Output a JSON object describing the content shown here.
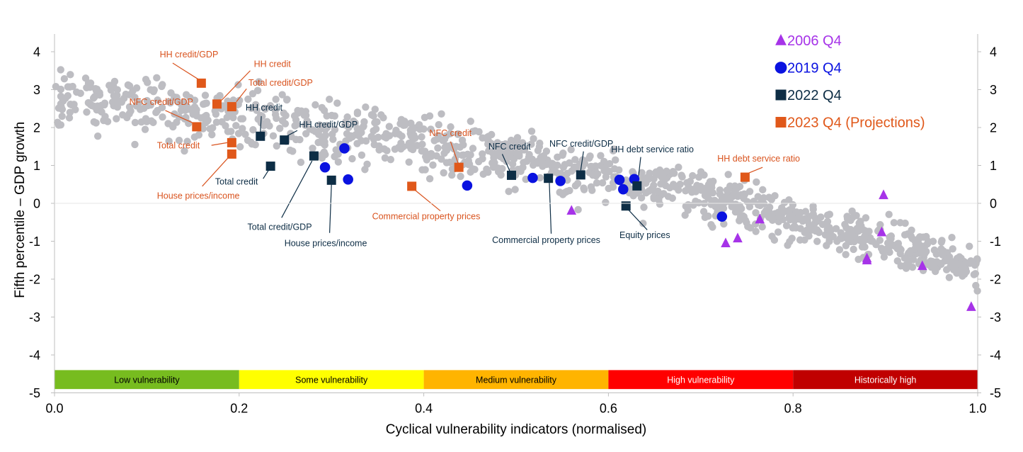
{
  "chart_data": {
    "type": "scatter",
    "title": "",
    "xlabel": "Cyclical vulnerability indicators (normalised)",
    "ylabel": "Fifth percentile – GDP growth",
    "xlim": [
      0,
      1
    ],
    "ylim": [
      -5,
      4.5
    ],
    "x_ticks": [
      "0.0",
      "0.2",
      "0.4",
      "0.6",
      "0.8",
      "1.0"
    ],
    "y_ticks": [
      "-5",
      "-4",
      "-3",
      "-2",
      "-1",
      "0",
      "1",
      "2",
      "3",
      "4"
    ],
    "grid": false,
    "legend_position": "top-right",
    "colors": {
      "background_points": "#bdbdc2",
      "s2006": "#a633e8",
      "s2019": "#0a12e0",
      "s2022": "#0d2d45",
      "s2023": "#e0581a",
      "annot_orange": "#d9531e",
      "annot_navy": "#0d2d45"
    },
    "bands": [
      {
        "label": "Low vulnerability",
        "from": 0.0,
        "to": 0.2,
        "color": "#77bc1f",
        "text_color": "#000000"
      },
      {
        "label": "Some vulnerability",
        "from": 0.2,
        "to": 0.4,
        "color": "#ffff00",
        "text_color": "#000000"
      },
      {
        "label": "Medium vulnerability",
        "from": 0.4,
        "to": 0.6,
        "color": "#ffb400",
        "text_color": "#000000"
      },
      {
        "label": "High vulnerability",
        "from": 0.6,
        "to": 0.8,
        "color": "#ff0000",
        "text_color": "#ffffff"
      },
      {
        "label": "Historically high",
        "from": 0.8,
        "to": 1.0,
        "color": "#c00000",
        "text_color": "#ffffff"
      }
    ],
    "band_y_range": [
      -4.4,
      -4.9
    ],
    "series": [
      {
        "name": "2006 Q4",
        "marker": "triangle",
        "color": "#a633e8",
        "points": [
          [
            0.56,
            -0.19
          ],
          [
            0.727,
            -1.05
          ],
          [
            0.74,
            -0.92
          ],
          [
            0.764,
            -0.42
          ],
          [
            0.88,
            -1.45
          ],
          [
            0.88,
            -1.5
          ],
          [
            0.896,
            -0.76
          ],
          [
            0.898,
            0.22
          ],
          [
            0.94,
            -1.65
          ],
          [
            0.993,
            -2.73
          ]
        ]
      },
      {
        "name": "2019 Q4",
        "marker": "circle",
        "color": "#0a12e0",
        "points": [
          [
            0.293,
            0.95
          ],
          [
            0.314,
            1.45
          ],
          [
            0.318,
            0.63
          ],
          [
            0.447,
            0.47
          ],
          [
            0.518,
            0.67
          ],
          [
            0.548,
            0.59
          ],
          [
            0.612,
            0.62
          ],
          [
            0.616,
            0.37
          ],
          [
            0.628,
            0.64
          ],
          [
            0.723,
            -0.35
          ]
        ]
      },
      {
        "name": "2022 Q4",
        "marker": "square",
        "color": "#0d2d45",
        "points": [
          [
            0.223,
            1.77
          ],
          [
            0.234,
            0.98
          ],
          [
            0.249,
            1.67
          ],
          [
            0.281,
            1.25
          ],
          [
            0.3,
            0.61
          ],
          [
            0.495,
            0.74
          ],
          [
            0.535,
            0.66
          ],
          [
            0.57,
            0.75
          ],
          [
            0.619,
            -0.07
          ],
          [
            0.631,
            0.46
          ]
        ]
      },
      {
        "name": "2023 Q4 (Projections)",
        "marker": "square",
        "color": "#e0581a",
        "points": [
          [
            0.154,
            2.02
          ],
          [
            0.159,
            3.17
          ],
          [
            0.176,
            2.62
          ],
          [
            0.192,
            1.6
          ],
          [
            0.192,
            1.3
          ],
          [
            0.192,
            2.55
          ],
          [
            0.387,
            0.45
          ],
          [
            0.438,
            0.95
          ],
          [
            0.748,
            0.69
          ]
        ]
      }
    ],
    "annotations": [
      {
        "text": "HH credit/GDP",
        "color": "#d9531e",
        "tx": 0.114,
        "ty": 3.85,
        "lx1": 0.128,
        "ly1": 3.7,
        "lx2": 0.156,
        "ly2": 3.27
      },
      {
        "text": "HH credit",
        "color": "#d9531e",
        "tx": 0.216,
        "ty": 3.6,
        "lx1": 0.212,
        "ly1": 3.5,
        "lx2": 0.181,
        "ly2": 2.72
      },
      {
        "text": "Total credit/GDP",
        "color": "#d9531e",
        "tx": 0.21,
        "ty": 3.1,
        "lx1": 0.208,
        "ly1": 3.02,
        "lx2": 0.197,
        "ly2": 2.68
      },
      {
        "text": "NFC credit/GDP",
        "color": "#d9531e",
        "tx": 0.081,
        "ty": 2.6,
        "lx1": 0.12,
        "ly1": 2.45,
        "lx2": 0.15,
        "ly2": 2.12
      },
      {
        "text": "Total credit",
        "color": "#d9531e",
        "tx": 0.111,
        "ty": 1.45,
        "lx1": 0.17,
        "ly1": 1.53,
        "lx2": 0.187,
        "ly2": 1.6
      },
      {
        "text": "House prices/income",
        "color": "#d9531e",
        "tx": 0.111,
        "ty": 0.12,
        "lx1": 0.16,
        "ly1": 0.45,
        "lx2": 0.188,
        "ly2": 1.2
      },
      {
        "text": "Commercial property prices",
        "color": "#d9531e",
        "tx": 0.344,
        "ty": -0.42,
        "lx1": 0.418,
        "ly1": -0.2,
        "lx2": 0.39,
        "ly2": 0.36
      },
      {
        "text": "NFC credit",
        "color": "#d9531e",
        "tx": 0.406,
        "ty": 1.78,
        "lx1": 0.429,
        "ly1": 1.63,
        "lx2": 0.437,
        "ly2": 1.07
      },
      {
        "text": "HH debt service ratio",
        "color": "#d9531e",
        "tx": 0.718,
        "ty": 1.1,
        "lx1": 0.767,
        "ly1": 0.95,
        "lx2": 0.752,
        "ly2": 0.8
      },
      {
        "text": "HH credit",
        "color": "#0d2d45",
        "tx": 0.207,
        "ty": 2.45,
        "lx1": 0.224,
        "ly1": 2.3,
        "lx2": 0.223,
        "ly2": 1.88
      },
      {
        "text": "HH credit/GDP",
        "color": "#0d2d45",
        "tx": 0.265,
        "ty": 2.0,
        "lx1": 0.263,
        "ly1": 1.92,
        "lx2": 0.252,
        "ly2": 1.78
      },
      {
        "text": "Total credit",
        "color": "#0d2d45",
        "tx": 0.174,
        "ty": 0.5,
        "lx1": 0.226,
        "ly1": 0.65,
        "lx2": 0.232,
        "ly2": 0.88
      },
      {
        "text": "Total credit/GDP",
        "color": "#0d2d45",
        "tx": 0.209,
        "ty": -0.7,
        "lx1": 0.246,
        "ly1": -0.38,
        "lx2": 0.279,
        "ly2": 1.12
      },
      {
        "text": "House prices/income",
        "color": "#0d2d45",
        "tx": 0.249,
        "ty": -1.13,
        "lx1": 0.298,
        "ly1": -0.78,
        "lx2": 0.3,
        "ly2": 0.5
      },
      {
        "text": "NFC credit",
        "color": "#0d2d45",
        "tx": 0.47,
        "ty": 1.42,
        "lx1": 0.485,
        "ly1": 1.3,
        "lx2": 0.493,
        "ly2": 0.86
      },
      {
        "text": "NFC credit/GDP",
        "color": "#0d2d45",
        "tx": 0.536,
        "ty": 1.5,
        "lx1": 0.573,
        "ly1": 1.37,
        "lx2": 0.57,
        "ly2": 0.87
      },
      {
        "text": "HH debt service ratio",
        "color": "#0d2d45",
        "tx": 0.603,
        "ty": 1.35,
        "lx1": 0.635,
        "ly1": 1.22,
        "lx2": 0.632,
        "ly2": 0.58
      },
      {
        "text": "Commercial property prices",
        "color": "#0d2d45",
        "tx": 0.474,
        "ty": -1.05,
        "lx1": 0.538,
        "ly1": -0.8,
        "lx2": 0.536,
        "ly2": 0.54
      },
      {
        "text": "Equity prices",
        "color": "#0d2d45",
        "tx": 0.612,
        "ty": -0.92,
        "lx1": 0.642,
        "ly1": -0.7,
        "lx2": 0.622,
        "ly2": -0.18
      }
    ]
  }
}
